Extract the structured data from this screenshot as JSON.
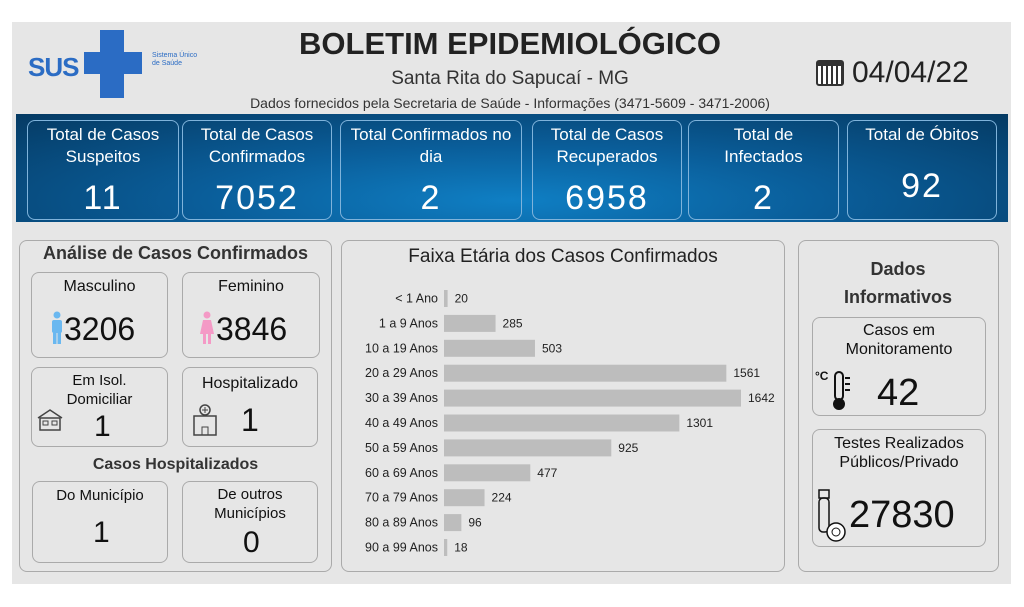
{
  "header": {
    "logo": {
      "text": "SUS",
      "tagline": "Sistema Único de Saúde"
    },
    "title": "BOLETIM EPIDEMIOLÓGICO",
    "subtitle": "Santa Rita do Sapucaí - MG",
    "source": "Dados fornecidos pela Secretaria de Saúde - Informações (3471-5609 - 3471-2006)",
    "date": "04/04/22",
    "date_icon": "calendar-icon"
  },
  "kpis": [
    {
      "label": "Total de Casos Suspeitos",
      "value": "11"
    },
    {
      "label": "Total de Casos Confirmados",
      "value": "7052"
    },
    {
      "label": "Total Confirmados no dia",
      "value": "2"
    },
    {
      "label": "Total de Casos Recuperados",
      "value": "6958"
    },
    {
      "label": "Total de Infectados",
      "value": "2"
    },
    {
      "label": "Total de Óbitos",
      "value": "92"
    }
  ],
  "analysis": {
    "title": "Análise de Casos Confirmados",
    "male": {
      "label": "Masculino",
      "value": "3206",
      "color": "#6ab8f0"
    },
    "female": {
      "label": "Feminino",
      "value": "3846",
      "color": "#f49ac6"
    },
    "isolation": {
      "label": "Em Isol. Domiciliar",
      "value": "1"
    },
    "hospitalized": {
      "label": "Hospitalizado",
      "value": "1"
    },
    "hosp_title": "Casos Hospitalizados",
    "municipal": {
      "label": "Do Município",
      "value": "1"
    },
    "other": {
      "label": "De outros Municípios",
      "value": "0"
    }
  },
  "info": {
    "title": "Dados Informativos",
    "monitoring": {
      "label": "Casos em Monitoramento",
      "value": "42"
    },
    "tests": {
      "label": "Testes Realizados Públicos/Privado",
      "value": "27830"
    }
  },
  "chart_data": {
    "type": "bar",
    "orientation": "horizontal",
    "title": "Faixa Etária dos Casos Confirmados",
    "categories": [
      "< 1 Ano",
      "1 a 9 Anos",
      "10 a 19 Anos",
      "20 a 29 Anos",
      "30 a 39 Anos",
      "40 a 49 Anos",
      "50 a 59 Anos",
      "60 a 69 Anos",
      "70 a 79 Anos",
      "80 a 89 Anos",
      "90 a 99 Anos"
    ],
    "values": [
      20,
      285,
      503,
      1561,
      1642,
      1301,
      925,
      477,
      224,
      96,
      18
    ],
    "bar_color": "#bdbdbd",
    "grid": false,
    "data_labels": true
  }
}
